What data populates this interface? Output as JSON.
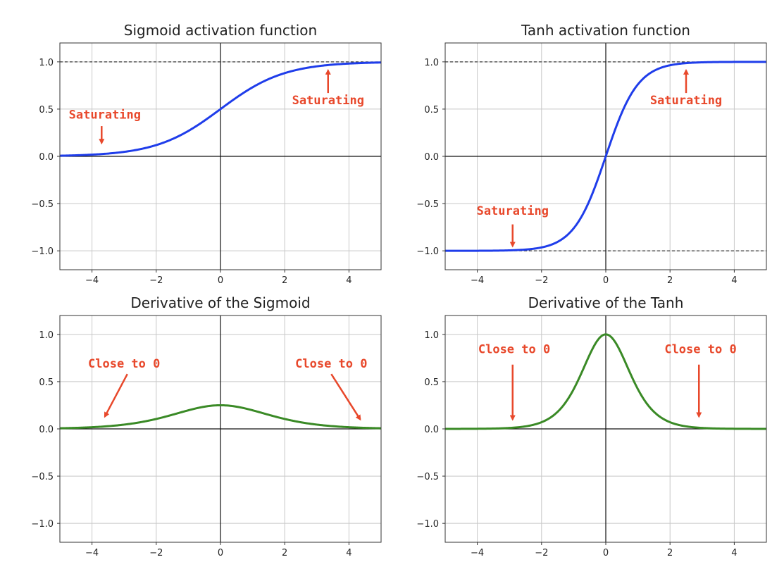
{
  "colors": {
    "annotation": "#e8482b",
    "activation": "#1f3dea",
    "derivative": "#3a8a26"
  },
  "chart_data": [
    {
      "type": "line",
      "title": "Sigmoid activation function",
      "function": "sigmoid",
      "color": "#1f3dea",
      "xlim": [
        -5,
        5
      ],
      "ylim": [
        -1.2,
        1.2
      ],
      "xticks": [
        -4,
        -2,
        0,
        2,
        4
      ],
      "xtick_labels": [
        "−4",
        "−2",
        "0",
        "2",
        "4"
      ],
      "yticks": [
        -1.0,
        -0.5,
        0.0,
        0.5,
        1.0
      ],
      "ytick_labels": [
        "−1.0",
        "−0.5",
        "0.0",
        "0.5",
        "1.0"
      ],
      "grid": true,
      "reference_lines": [
        1.0
      ],
      "series": [
        {
          "name": "sigmoid(x)",
          "x": [
            -5,
            -4,
            -3,
            -2,
            -1,
            0,
            1,
            2,
            3,
            4,
            5
          ],
          "y": [
            0.007,
            0.018,
            0.047,
            0.119,
            0.269,
            0.5,
            0.731,
            0.881,
            0.953,
            0.982,
            0.993
          ]
        }
      ],
      "annotations": [
        {
          "text": "Saturating",
          "text_x": -3.6,
          "text_y": 0.4,
          "arrow_from": [
            -3.7,
            0.32
          ],
          "arrow_to": [
            -3.7,
            0.14
          ]
        },
        {
          "text": "Saturating",
          "text_x": 3.35,
          "text_y": 0.55,
          "arrow_from": [
            3.35,
            0.67
          ],
          "arrow_to": [
            3.35,
            0.91
          ]
        }
      ]
    },
    {
      "type": "line",
      "title": "Tanh activation function",
      "function": "tanh",
      "color": "#1f3dea",
      "xlim": [
        -5,
        5
      ],
      "ylim": [
        -1.2,
        1.2
      ],
      "xticks": [
        -4,
        -2,
        0,
        2,
        4
      ],
      "xtick_labels": [
        "−4",
        "−2",
        "0",
        "2",
        "4"
      ],
      "yticks": [
        -1.0,
        -0.5,
        0.0,
        0.5,
        1.0
      ],
      "ytick_labels": [
        "−1.0",
        "−0.5",
        "0.0",
        "0.5",
        "1.0"
      ],
      "grid": true,
      "reference_lines": [
        1.0,
        -1.0
      ],
      "series": [
        {
          "name": "tanh(x)",
          "x": [
            -5,
            -4,
            -3,
            -2,
            -1,
            0,
            1,
            2,
            3,
            4,
            5
          ],
          "y": [
            -1.0,
            -0.999,
            -0.995,
            -0.964,
            -0.762,
            0.0,
            0.762,
            0.964,
            0.995,
            0.999,
            1.0
          ]
        }
      ],
      "annotations": [
        {
          "text": "Saturating",
          "text_x": -2.9,
          "text_y": -0.62,
          "arrow_from": [
            -2.9,
            -0.72
          ],
          "arrow_to": [
            -2.9,
            -0.95
          ]
        },
        {
          "text": "Saturating",
          "text_x": 2.5,
          "text_y": 0.55,
          "arrow_from": [
            2.5,
            0.67
          ],
          "arrow_to": [
            2.5,
            0.91
          ]
        }
      ]
    },
    {
      "type": "line",
      "title": "Derivative of the Sigmoid",
      "function": "sigmoid_derivative",
      "color": "#3a8a26",
      "xlim": [
        -5,
        5
      ],
      "ylim": [
        -1.2,
        1.2
      ],
      "xticks": [
        -4,
        -2,
        0,
        2,
        4
      ],
      "xtick_labels": [
        "−4",
        "−2",
        "0",
        "2",
        "4"
      ],
      "yticks": [
        -1.0,
        -0.5,
        0.0,
        0.5,
        1.0
      ],
      "ytick_labels": [
        "−1.0",
        "−0.5",
        "0.0",
        "0.5",
        "1.0"
      ],
      "grid": true,
      "reference_lines": [],
      "series": [
        {
          "name": "sigmoid'(x)",
          "x": [
            -5,
            -4,
            -3,
            -2,
            -1,
            0,
            1,
            2,
            3,
            4,
            5
          ],
          "y": [
            0.007,
            0.018,
            0.045,
            0.105,
            0.197,
            0.25,
            0.197,
            0.105,
            0.045,
            0.018,
            0.007
          ]
        }
      ],
      "annotations": [
        {
          "text": "Close to 0",
          "text_x": -3.0,
          "text_y": 0.65,
          "arrow_from": [
            -2.9,
            0.58
          ],
          "arrow_to": [
            -3.6,
            0.13
          ]
        },
        {
          "text": "Close to 0",
          "text_x": 3.45,
          "text_y": 0.65,
          "arrow_from": [
            3.45,
            0.58
          ],
          "arrow_to": [
            4.35,
            0.1
          ]
        }
      ]
    },
    {
      "type": "line",
      "title": "Derivative of the Tanh",
      "function": "tanh_derivative",
      "color": "#3a8a26",
      "xlim": [
        -5,
        5
      ],
      "ylim": [
        -1.2,
        1.2
      ],
      "xticks": [
        -4,
        -2,
        0,
        2,
        4
      ],
      "xtick_labels": [
        "−4",
        "−2",
        "0",
        "2",
        "4"
      ],
      "yticks": [
        -1.0,
        -0.5,
        0.0,
        0.5,
        1.0
      ],
      "ytick_labels": [
        "−1.0",
        "−0.5",
        "0.0",
        "0.5",
        "1.0"
      ],
      "grid": true,
      "reference_lines": [],
      "series": [
        {
          "name": "tanh'(x)",
          "x": [
            -5,
            -4,
            -3,
            -2,
            -1,
            0,
            1,
            2,
            3,
            4,
            5
          ],
          "y": [
            0.0002,
            0.0013,
            0.0099,
            0.071,
            0.42,
            1.0,
            0.42,
            0.071,
            0.0099,
            0.0013,
            0.0002
          ]
        }
      ],
      "annotations": [
        {
          "text": "Close to 0",
          "text_x": -2.85,
          "text_y": 0.8,
          "arrow_from": [
            -2.9,
            0.68
          ],
          "arrow_to": [
            -2.9,
            0.1
          ]
        },
        {
          "text": "Close to 0",
          "text_x": 2.95,
          "text_y": 0.8,
          "arrow_from": [
            2.9,
            0.68
          ],
          "arrow_to": [
            2.9,
            0.13
          ]
        }
      ]
    }
  ]
}
